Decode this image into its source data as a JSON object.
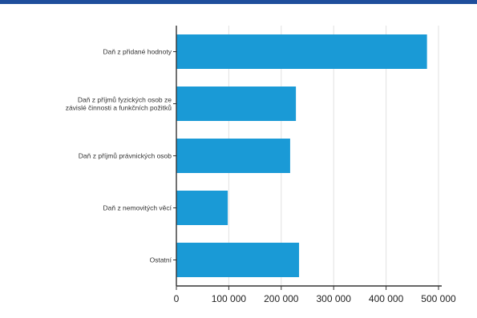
{
  "chart_data": {
    "type": "bar",
    "orientation": "horizontal",
    "categories": [
      [
        "Daň z přidané hodnoty"
      ],
      [
        "Daň z příjmů fyzických osob ze",
        "závislé činnosti a funkčních požitků"
      ],
      [
        "Daň z příjmů právnických osob"
      ],
      [
        "Daň z nemovitých věcí"
      ],
      [
        "Ostatní"
      ]
    ],
    "values": [
      478000,
      228000,
      217000,
      98000,
      234000
    ],
    "xlim": [
      0,
      500000
    ],
    "xticks": [
      0,
      100000,
      200000,
      300000,
      400000,
      500000
    ],
    "xtick_labels": [
      "0",
      "100 000",
      "200 000",
      "300 000",
      "400 000",
      "500 000"
    ],
    "grid": "vertical",
    "bar_color": "#1a9ad6",
    "title": "",
    "xlabel": "",
    "ylabel": ""
  },
  "header_bar_color": "#1f4e9c"
}
